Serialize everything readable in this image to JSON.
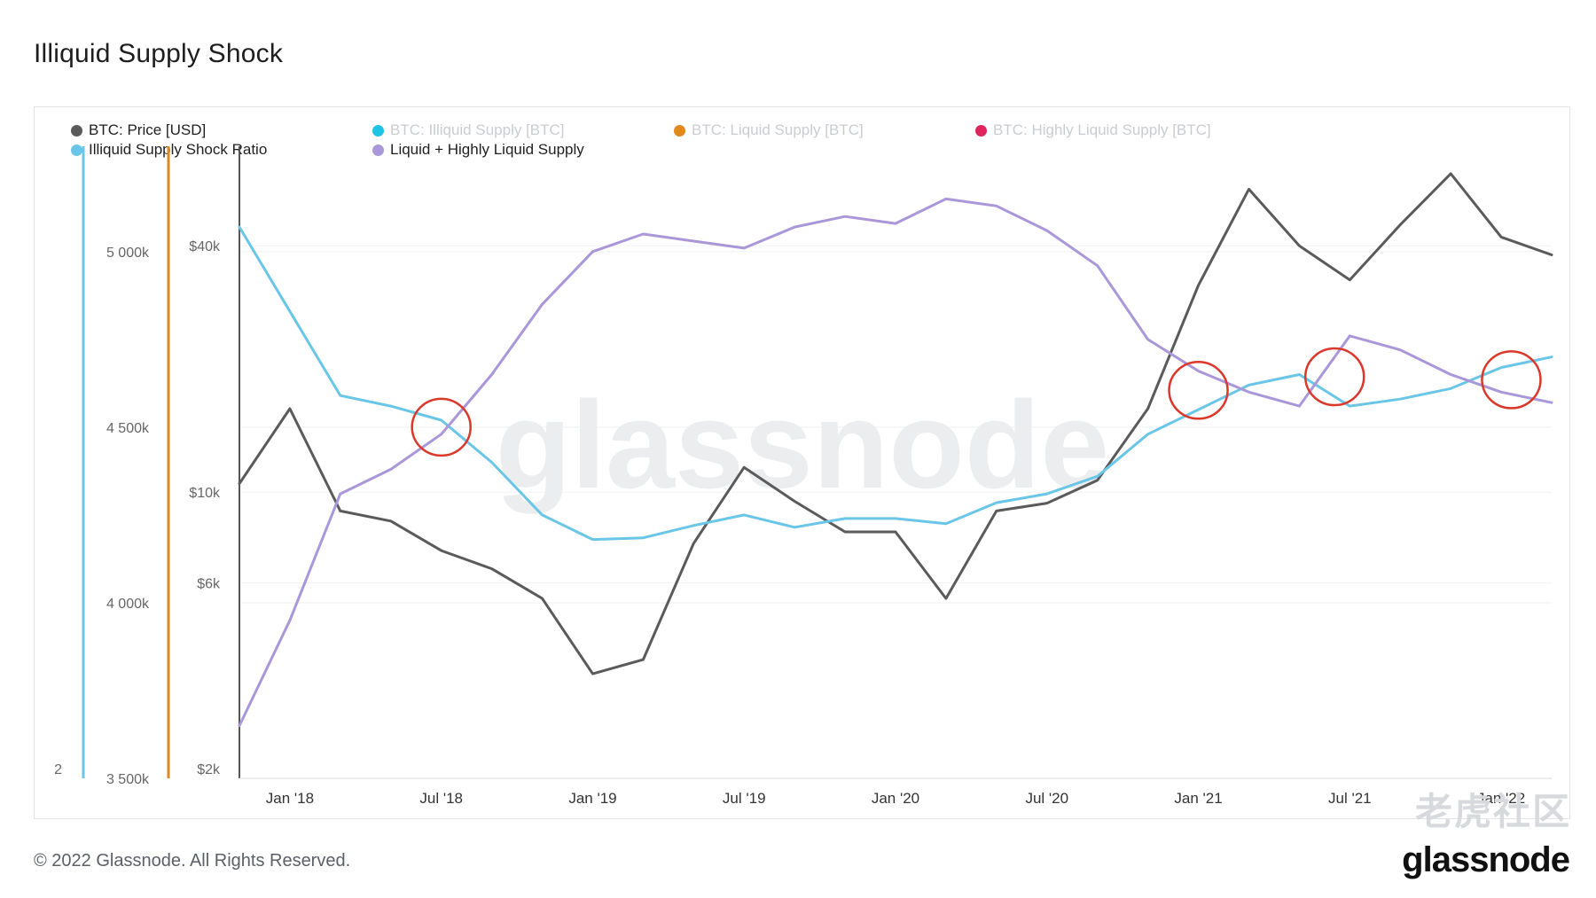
{
  "title": "Illiquid Supply Shock",
  "legend": [
    {
      "label": "BTC: Price [USD]",
      "color": "#5a5a5a",
      "active": true
    },
    {
      "label": "BTC: Illiquid Supply [BTC]",
      "color": "#1fc3e3",
      "active": false
    },
    {
      "label": "BTC: Liquid Supply [BTC]",
      "color": "#e08a1e",
      "active": false
    },
    {
      "label": "BTC: Highly Liquid Supply [BTC]",
      "color": "#e0245e",
      "active": false
    },
    {
      "label": "Illiquid Supply Shock Ratio",
      "color": "#6ac6e6",
      "active": true
    },
    {
      "label": "Liquid + Highly Liquid Supply",
      "color": "#a997d9",
      "active": true
    }
  ],
  "axes": {
    "ratio_axis": {
      "ticks": [
        "2"
      ],
      "color": "#6ac6e6"
    },
    "supply_axis": {
      "ticks": [
        "5 000k",
        "4 500k",
        "4 000k",
        "3 500k"
      ],
      "color": "#e08a1e"
    },
    "price_axis": {
      "ticks": [
        "$40k",
        "$10k",
        "$6k",
        "$2k"
      ],
      "scale": "log"
    },
    "x_ticks": [
      "Jan '18",
      "Jul '18",
      "Jan '19",
      "Jul '19",
      "Jan '20",
      "Jul '20",
      "Jan '21",
      "Jul '21",
      "Jan '22"
    ]
  },
  "chart_data": {
    "type": "line",
    "title": "Illiquid Supply Shock",
    "x": [
      "Dec '17",
      "Jan '18",
      "Mar '18",
      "May '18",
      "Jul '18",
      "Sep '18",
      "Nov '18",
      "Jan '19",
      "Mar '19",
      "May '19",
      "Jul '19",
      "Sep '19",
      "Nov '19",
      "Jan '20",
      "Mar '20",
      "May '20",
      "Jul '20",
      "Sep '20",
      "Nov '20",
      "Jan '21",
      "Mar '21",
      "May '21",
      "Jul '21",
      "Sep '21",
      "Nov '21",
      "Jan '22",
      "Feb '22"
    ],
    "series": [
      {
        "name": "BTC: Price [USD]",
        "axis": "price",
        "color": "#5a5a5a",
        "values": [
          10500,
          16000,
          9000,
          8500,
          7200,
          6500,
          5500,
          3600,
          3900,
          7500,
          11500,
          9500,
          8000,
          8000,
          5500,
          9000,
          9400,
          10700,
          16000,
          32000,
          55000,
          40000,
          33000,
          45000,
          60000,
          42000,
          38000
        ]
      },
      {
        "name": "Illiquid Supply Shock Ratio",
        "axis": "supply_scale",
        "color": "#6ac6e6",
        "values": [
          5070,
          4830,
          4590,
          4560,
          4520,
          4400,
          4250,
          4180,
          4185,
          4220,
          4250,
          4215,
          4240,
          4240,
          4225,
          4285,
          4310,
          4360,
          4480,
          4550,
          4620,
          4650,
          4560,
          4580,
          4610,
          4670,
          4700
        ]
      },
      {
        "name": "Liquid + Highly Liquid Supply",
        "axis": "supply_scale",
        "color": "#a997d9",
        "values": [
          3650,
          3950,
          4310,
          4380,
          4480,
          4650,
          4850,
          5000,
          5050,
          5030,
          5010,
          5070,
          5100,
          5080,
          5150,
          5130,
          5060,
          4960,
          4750,
          4660,
          4600,
          4560,
          4760,
          4720,
          4650,
          4600,
          4570
        ]
      }
    ],
    "ylabel": "",
    "xlabel": "",
    "ylim_supply": [
      3500,
      5300
    ],
    "ylim_price_log": [
      2000,
      70000
    ],
    "grid": true,
    "legend_position": "top-left",
    "annotations": [
      {
        "type": "circle",
        "color": "#d9382b",
        "at": "Jul '18"
      },
      {
        "type": "circle",
        "color": "#d9382b",
        "at": "Jan '21"
      },
      {
        "type": "circle",
        "color": "#d9382b",
        "at": "Jun '21"
      },
      {
        "type": "circle",
        "color": "#d9382b",
        "at": "Jan '22"
      }
    ]
  },
  "watermark": "glassnode",
  "footer": "© 2022 Glassnode. All Rights Reserved.",
  "brand": "glassnode",
  "overlay_watermark": "老虎社区"
}
